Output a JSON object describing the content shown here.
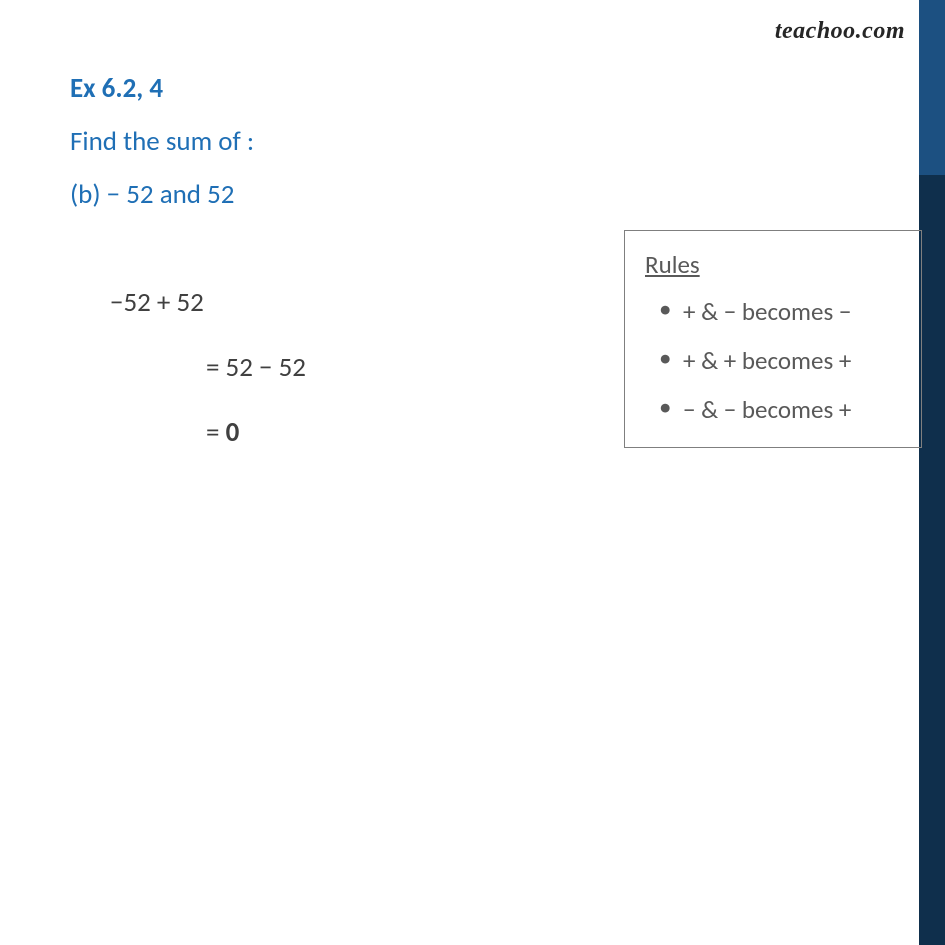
{
  "watermark": {
    "text": "teachoo.com",
    "color": "#262626",
    "fontsize": 24
  },
  "sidebar": {
    "top_color": "#1c5081",
    "bottom_color": "#0f2f4c"
  },
  "heading": {
    "text": "Ex 6.2, 4",
    "color": "#1f6fb5",
    "fontsize": 27
  },
  "question": {
    "text": "Find the sum of :",
    "color": "#1f6fb5",
    "fontsize": 27
  },
  "sub": {
    "text": "(b) − 52 and 52",
    "color": "#1f6fb5",
    "fontsize": 27
  },
  "solution": {
    "line1": "−52 + 52",
    "line2": "= 52 − 52",
    "line3_prefix": "= ",
    "line3_value": "0",
    "color": "#404040",
    "fontsize": 27
  },
  "rules": {
    "title": "Rules",
    "items": [
      "+ & − becomes −",
      "+ & + becomes +",
      "− & − becomes +"
    ],
    "border_color": "#7f7f7f",
    "text_color": "#595959",
    "fontsize": 25
  }
}
